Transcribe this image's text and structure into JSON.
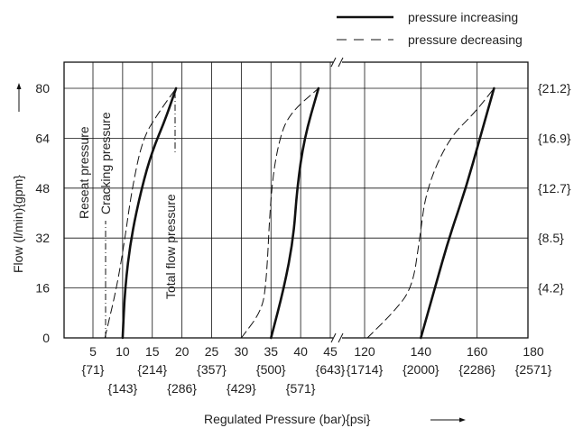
{
  "chart_data": {
    "type": "line",
    "xlabel": "Regulated Pressure (bar){psi}",
    "ylabel": "Flow (l/min){gpm}",
    "ylim": [
      0,
      80
    ],
    "yticks": [
      "0",
      "16",
      "32",
      "48",
      "64",
      "80"
    ],
    "yticks_right": [
      "{4.2}",
      "{8.5}",
      "{12.7}",
      "{16.9}",
      "{21.2}"
    ],
    "grid": true,
    "axis_break": "between 45 and 120 bar",
    "xticks_left": [
      "5",
      "10",
      "15",
      "20",
      "25",
      "30",
      "35",
      "40",
      "45"
    ],
    "xticks_right": [
      "120",
      "140",
      "160",
      "180"
    ],
    "psi_labels_upper": [
      "{71}",
      "{214}",
      "{357}",
      "{500}",
      "{643}",
      "{1714}",
      "{2000}",
      "{2286}",
      "{2571}"
    ],
    "psi_labels_lower": [
      "{143}",
      "{286}",
      "{429}",
      "{571}"
    ],
    "annotations": [
      "Reseat pressure",
      "Cracking pressure",
      "Total flow pressure"
    ],
    "legend": {
      "position": "top-right",
      "increasing": "pressure increasing",
      "decreasing": "pressure decreasing"
    },
    "series": [
      {
        "name": "pressure increasing",
        "group": "10 bar",
        "style": "solid",
        "x": [
          10,
          10.4,
          11.4,
          13.2,
          15,
          17.2,
          19
        ],
        "y": [
          0,
          16,
          32,
          48,
          60,
          70,
          80
        ]
      },
      {
        "name": "pressure decreasing",
        "group": "10 bar",
        "style": "dashed",
        "x": [
          7,
          9,
          10.4,
          11.6,
          13.4,
          16,
          19
        ],
        "y": [
          0,
          16,
          32,
          48,
          64,
          72,
          80
        ]
      },
      {
        "name": "pressure increasing",
        "group": "35 bar",
        "style": "solid",
        "x": [
          35,
          37.2,
          38.8,
          39.4,
          40.6,
          43
        ],
        "y": [
          0,
          16,
          32,
          48,
          64,
          80
        ]
      },
      {
        "name": "pressure decreasing",
        "group": "35 bar",
        "style": "dashed",
        "x": [
          30,
          33.2,
          34.2,
          35,
          36.4,
          38.2,
          43
        ],
        "y": [
          0,
          8,
          16,
          48,
          64,
          72,
          80
        ]
      },
      {
        "name": "pressure increasing",
        "group": "140 bar",
        "style": "solid",
        "x": [
          140,
          145,
          150,
          156,
          161,
          166
        ],
        "y": [
          0,
          16,
          32,
          48,
          64,
          80
        ]
      },
      {
        "name": "pressure decreasing",
        "group": "140 bar",
        "style": "dashed",
        "x": [
          121,
          130,
          137,
          139.6,
          142,
          150,
          159,
          166
        ],
        "y": [
          0,
          8,
          16,
          32,
          48,
          64,
          72,
          80
        ]
      }
    ]
  }
}
